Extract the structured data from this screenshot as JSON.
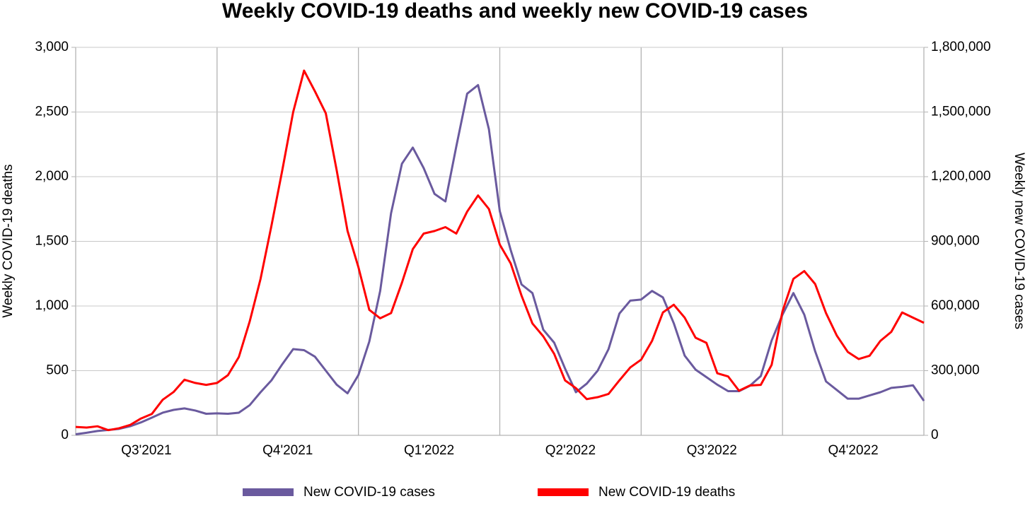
{
  "chart_data": {
    "type": "line",
    "title": "Weekly COVID-19 deaths and weekly new COVID-19 cases",
    "y_label": "Weekly COVID-19 deaths",
    "y2_label": "Weekly new COVID-19 cases",
    "x_labels": [
      "Q3'2021",
      "Q4'2021",
      "Q1'2022",
      "Q2'2022",
      "Q3'2022",
      "Q4'2022"
    ],
    "ylim": [
      0,
      3000
    ],
    "yticks": [
      0,
      500,
      {
        "value": 1000,
        "label": "1,000"
      },
      {
        "value": 1500,
        "label": "1,500"
      },
      {
        "value": 2000,
        "label": "2,000"
      },
      {
        "value": 2500,
        "label": "2,500"
      },
      {
        "value": 3000,
        "label": "3,000"
      }
    ],
    "y2lim": [
      0,
      1800000
    ],
    "y2ticks": [
      0,
      {
        "value": 300000,
        "label": "300,000"
      },
      {
        "value": 600000,
        "label": "600,000"
      },
      {
        "value": 900000,
        "label": "900,000"
      },
      {
        "value": 1200000,
        "label": "1,200,000"
      },
      {
        "value": 1500000,
        "label": "1,500,000"
      },
      {
        "value": 1800000,
        "label": "1,800,000"
      }
    ],
    "grid": true,
    "legend": "bottom",
    "series": [
      {
        "name": "New COVID-19 cases",
        "color": "#6a5a9e",
        "axis": "y2",
        "values": [
          5000,
          12000,
          20000,
          25000,
          30000,
          42000,
          60000,
          82000,
          105000,
          118000,
          125000,
          115000,
          100000,
          102000,
          100000,
          105000,
          140000,
          200000,
          255000,
          330000,
          400000,
          395000,
          365000,
          300000,
          235000,
          195000,
          280000,
          435000,
          670000,
          1030000,
          1260000,
          1335000,
          1240000,
          1120000,
          1085000,
          1340000,
          1585000,
          1625000,
          1420000,
          1040000,
          860000,
          700000,
          660000,
          490000,
          430000,
          310000,
          200000,
          240000,
          300000,
          400000,
          565000,
          625000,
          630000,
          670000,
          640000,
          520000,
          370000,
          305000,
          270000,
          235000,
          205000,
          205000,
          230000,
          275000,
          440000,
          560000,
          660000,
          560000,
          390000,
          250000,
          210000,
          170000,
          170000,
          185000,
          200000,
          220000,
          225000,
          232000,
          160000
        ]
      },
      {
        "name": "New COVID-19 deaths",
        "color": "#ff0000",
        "values": [
          65,
          60,
          70,
          40,
          55,
          80,
          130,
          165,
          275,
          335,
          430,
          405,
          390,
          405,
          465,
          605,
          880,
          1210,
          1620,
          2050,
          2500,
          2820,
          2660,
          2490,
          2050,
          1580,
          1300,
          970,
          905,
          945,
          1180,
          1440,
          1560,
          1580,
          1610,
          1560,
          1730,
          1855,
          1750,
          1475,
          1330,
          1080,
          865,
          765,
          630,
          425,
          365,
          280,
          295,
          320,
          425,
          525,
          585,
          730,
          950,
          1010,
          910,
          755,
          715,
          480,
          455,
          345,
          385,
          390,
          545,
          960,
          1210,
          1270,
          1170,
          945,
          770,
          645,
          590,
          615,
          730,
          800,
          950,
          910,
          870
        ]
      }
    ]
  }
}
